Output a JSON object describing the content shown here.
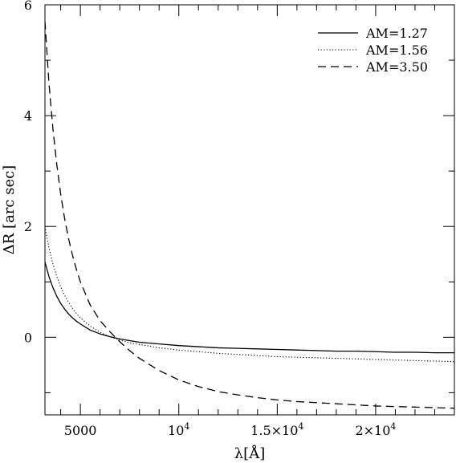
{
  "chart_data": {
    "type": "line",
    "xlabel": "λ[Å]",
    "ylabel": "ΔR [arc sec]",
    "xlim": [
      3200,
      24000
    ],
    "ylim": [
      -1.4,
      6
    ],
    "x_ticks": [
      {
        "value": 5000,
        "label": "5000",
        "sup": ""
      },
      {
        "value": 10000,
        "label": "10",
        "sup": "4"
      },
      {
        "value": 15000,
        "label": "1.5×10",
        "sup": "4"
      },
      {
        "value": 20000,
        "label": "2×10",
        "sup": "4"
      }
    ],
    "y_ticks": [
      {
        "value": 0,
        "label": "0"
      },
      {
        "value": 2,
        "label": "2"
      },
      {
        "value": 4,
        "label": "4"
      },
      {
        "value": 6,
        "label": "6"
      }
    ],
    "grid": false,
    "legend_position": "top-right",
    "series": [
      {
        "name": "AM=1.27",
        "style": "solid",
        "x": [
          3200,
          3400,
          3600,
          3800,
          4000,
          4200,
          4400,
          4600,
          4800,
          5000,
          5500,
          6000,
          6500,
          7000,
          7500,
          8000,
          9000,
          10000,
          11000,
          12000,
          13000,
          14000,
          15000,
          16000,
          17000,
          18000,
          19000,
          20000,
          21000,
          22000,
          23000,
          24000
        ],
        "values": [
          1.36,
          1.1,
          0.9,
          0.74,
          0.61,
          0.51,
          0.42,
          0.35,
          0.29,
          0.24,
          0.13,
          0.06,
          0.01,
          -0.03,
          -0.06,
          -0.09,
          -0.12,
          -0.15,
          -0.17,
          -0.19,
          -0.2,
          -0.21,
          -0.22,
          -0.23,
          -0.24,
          -0.25,
          -0.25,
          -0.26,
          -0.27,
          -0.27,
          -0.28,
          -0.28
        ]
      },
      {
        "name": "AM=1.56",
        "style": "dotted",
        "x": [
          3200,
          3400,
          3600,
          3800,
          4000,
          4200,
          4400,
          4600,
          4800,
          5000,
          5500,
          6000,
          6500,
          7000,
          7500,
          8000,
          9000,
          10000,
          11000,
          12000,
          13000,
          14000,
          15000,
          16000,
          17000,
          18000,
          19000,
          20000,
          21000,
          22000,
          23000,
          24000
        ],
        "values": [
          2.0,
          1.62,
          1.33,
          1.1,
          0.91,
          0.76,
          0.63,
          0.52,
          0.43,
          0.35,
          0.2,
          0.09,
          0.01,
          -0.05,
          -0.1,
          -0.13,
          -0.19,
          -0.23,
          -0.26,
          -0.29,
          -0.31,
          -0.33,
          -0.35,
          -0.36,
          -0.37,
          -0.38,
          -0.39,
          -0.4,
          -0.41,
          -0.42,
          -0.43,
          -0.44
        ]
      },
      {
        "name": "AM=3.50",
        "style": "dashed",
        "x": [
          3200,
          3400,
          3600,
          3800,
          4000,
          4200,
          4400,
          4600,
          4800,
          5000,
          5500,
          6000,
          6500,
          7000,
          7500,
          8000,
          9000,
          10000,
          11000,
          12000,
          13000,
          14000,
          15000,
          16000,
          17000,
          18000,
          19000,
          20000,
          21000,
          22000,
          23000,
          24000
        ],
        "values": [
          5.7,
          4.6,
          3.78,
          3.12,
          2.58,
          2.14,
          1.78,
          1.48,
          1.22,
          1.0,
          0.58,
          0.3,
          0.1,
          -0.08,
          -0.24,
          -0.38,
          -0.6,
          -0.77,
          -0.89,
          -0.98,
          -1.04,
          -1.09,
          -1.13,
          -1.16,
          -1.18,
          -1.2,
          -1.22,
          -1.24,
          -1.25,
          -1.26,
          -1.27,
          -1.28
        ]
      }
    ]
  }
}
